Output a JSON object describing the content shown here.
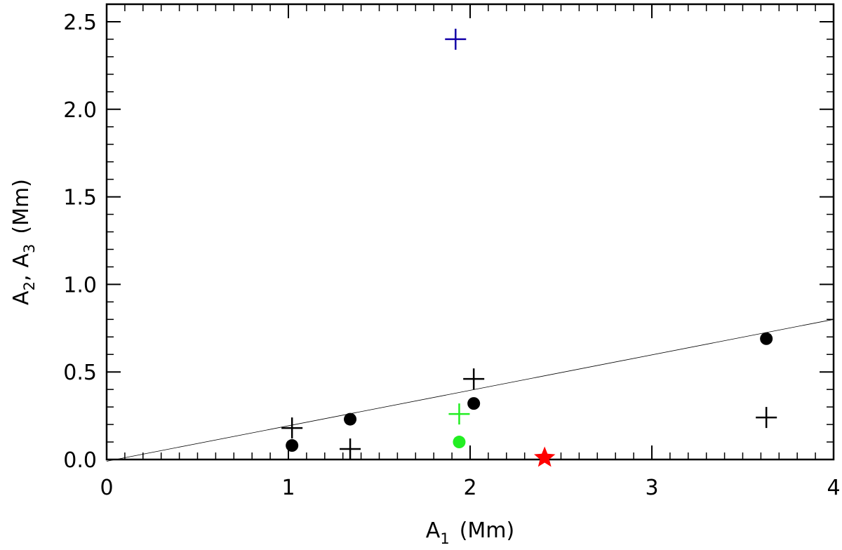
{
  "chart_data": {
    "type": "scatter",
    "title": "",
    "xlabel": {
      "main": "A",
      "sub": "1",
      "unit": "(Mm)"
    },
    "ylabel": {
      "a": "A",
      "a_sub": "2",
      "sep": ",",
      "b": "A",
      "b_sub": "3",
      "unit": "(Mm)"
    },
    "xlim": [
      0,
      4
    ],
    "ylim": [
      0,
      2.6
    ],
    "x_ticks": [
      0,
      1,
      2,
      3,
      4
    ],
    "x_tick_labels": [
      "0",
      "1",
      "2",
      "3",
      "4"
    ],
    "y_ticks": [
      0.0,
      0.5,
      1.0,
      1.5,
      2.0,
      2.5
    ],
    "y_tick_labels": [
      "0.0",
      "0.5",
      "1.0",
      "1.5",
      "2.0",
      "2.5"
    ],
    "grid": false,
    "fit_line": {
      "x": [
        0,
        4
      ],
      "y": [
        -0.01,
        0.8
      ],
      "color": "#000000"
    },
    "series": [
      {
        "marker": "circle",
        "color": "#000000",
        "points": [
          {
            "x": 1.02,
            "y": 0.08
          },
          {
            "x": 1.34,
            "y": 0.23
          },
          {
            "x": 2.02,
            "y": 0.32
          },
          {
            "x": 3.63,
            "y": 0.69
          }
        ]
      },
      {
        "marker": "plus",
        "color": "#000000",
        "points": [
          {
            "x": 1.02,
            "y": 0.18
          },
          {
            "x": 1.34,
            "y": 0.06
          },
          {
            "x": 2.02,
            "y": 0.46
          },
          {
            "x": 3.63,
            "y": 0.24
          }
        ]
      },
      {
        "marker": "plus",
        "color": "#1400a8",
        "points": [
          {
            "x": 1.92,
            "y": 2.4
          }
        ]
      },
      {
        "marker": "plus",
        "color": "#22ee22",
        "points": [
          {
            "x": 1.94,
            "y": 0.26
          }
        ]
      },
      {
        "marker": "circle",
        "color": "#22ee22",
        "points": [
          {
            "x": 1.94,
            "y": 0.1
          }
        ]
      },
      {
        "marker": "star",
        "color": "#ff0000",
        "points": [
          {
            "x": 2.41,
            "y": 0.01
          }
        ]
      }
    ]
  }
}
